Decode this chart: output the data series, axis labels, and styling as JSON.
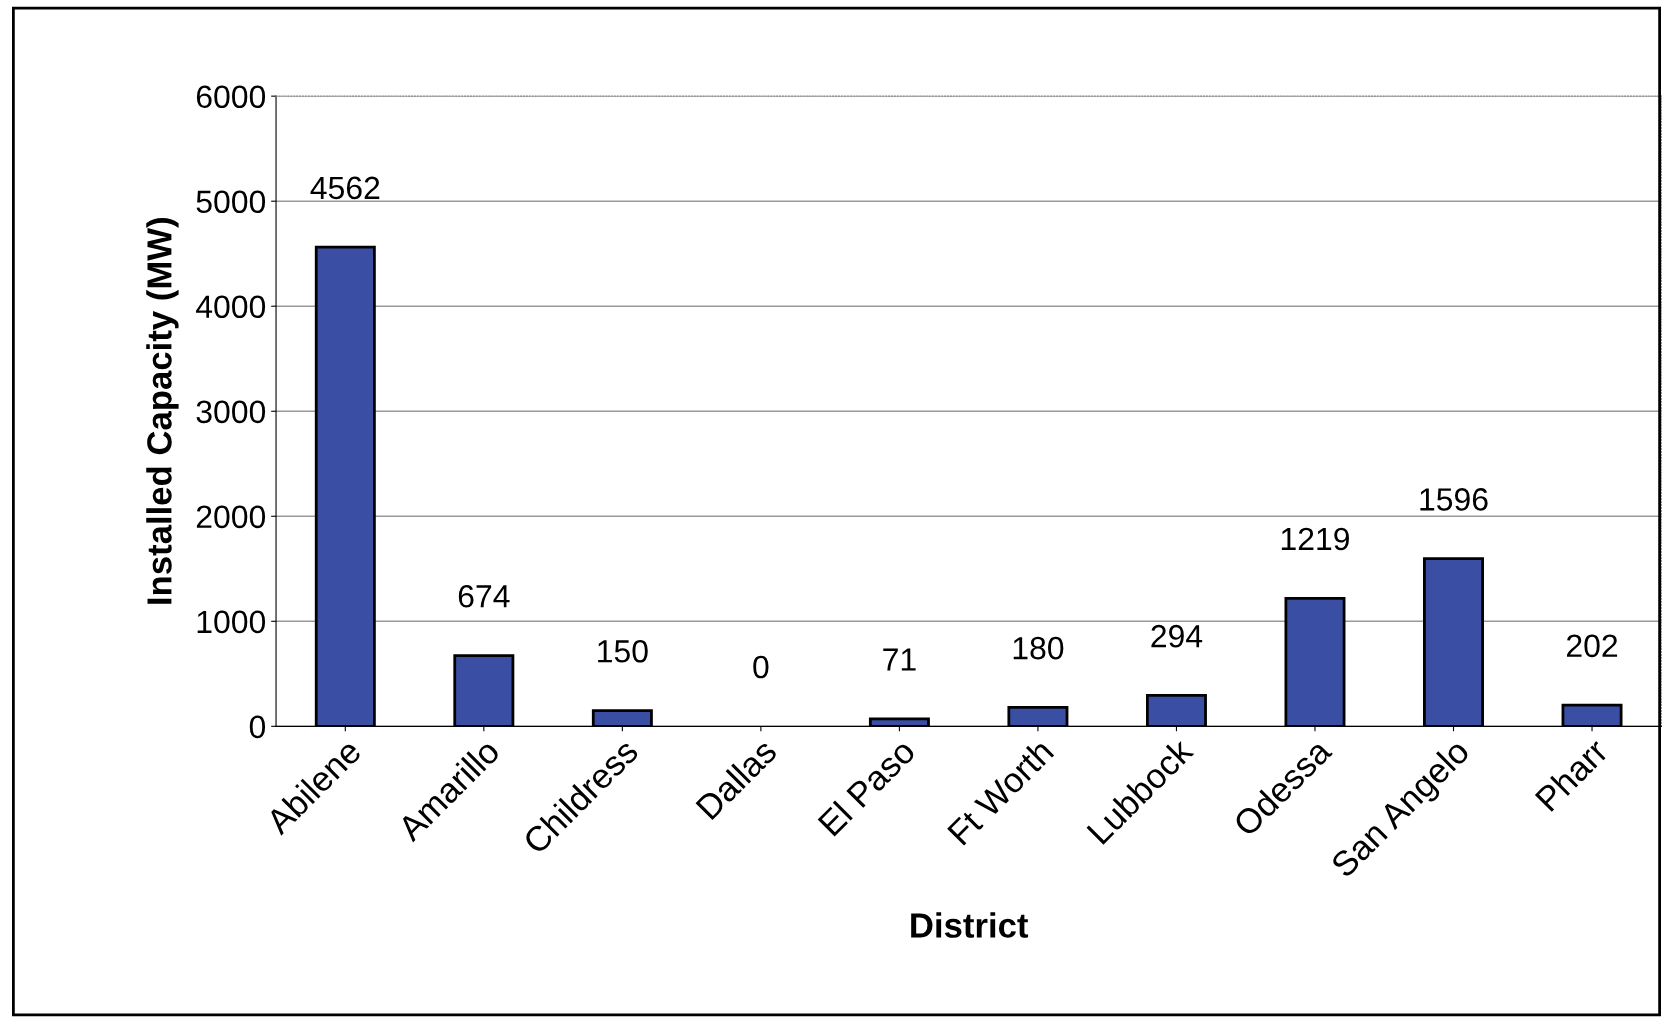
{
  "chart_data": {
    "type": "bar",
    "xlabel": "District",
    "ylabel": "Installed Capacity (MW)",
    "categories": [
      "Abilene",
      "Amarillo",
      "Childress",
      "Dallas",
      "El Paso",
      "Ft Worth",
      "Lubbock",
      "Odessa",
      "San Angelo",
      "Pharr"
    ],
    "values": [
      4562,
      674,
      150,
      0,
      71,
      180,
      294,
      1219,
      1596,
      202
    ],
    "color": "#3a4ea3",
    "ylim": [
      0,
      6000
    ],
    "yticks": [
      0,
      1000,
      2000,
      3000,
      4000,
      5000,
      6000
    ],
    "grid": "y",
    "data_labels": true
  }
}
